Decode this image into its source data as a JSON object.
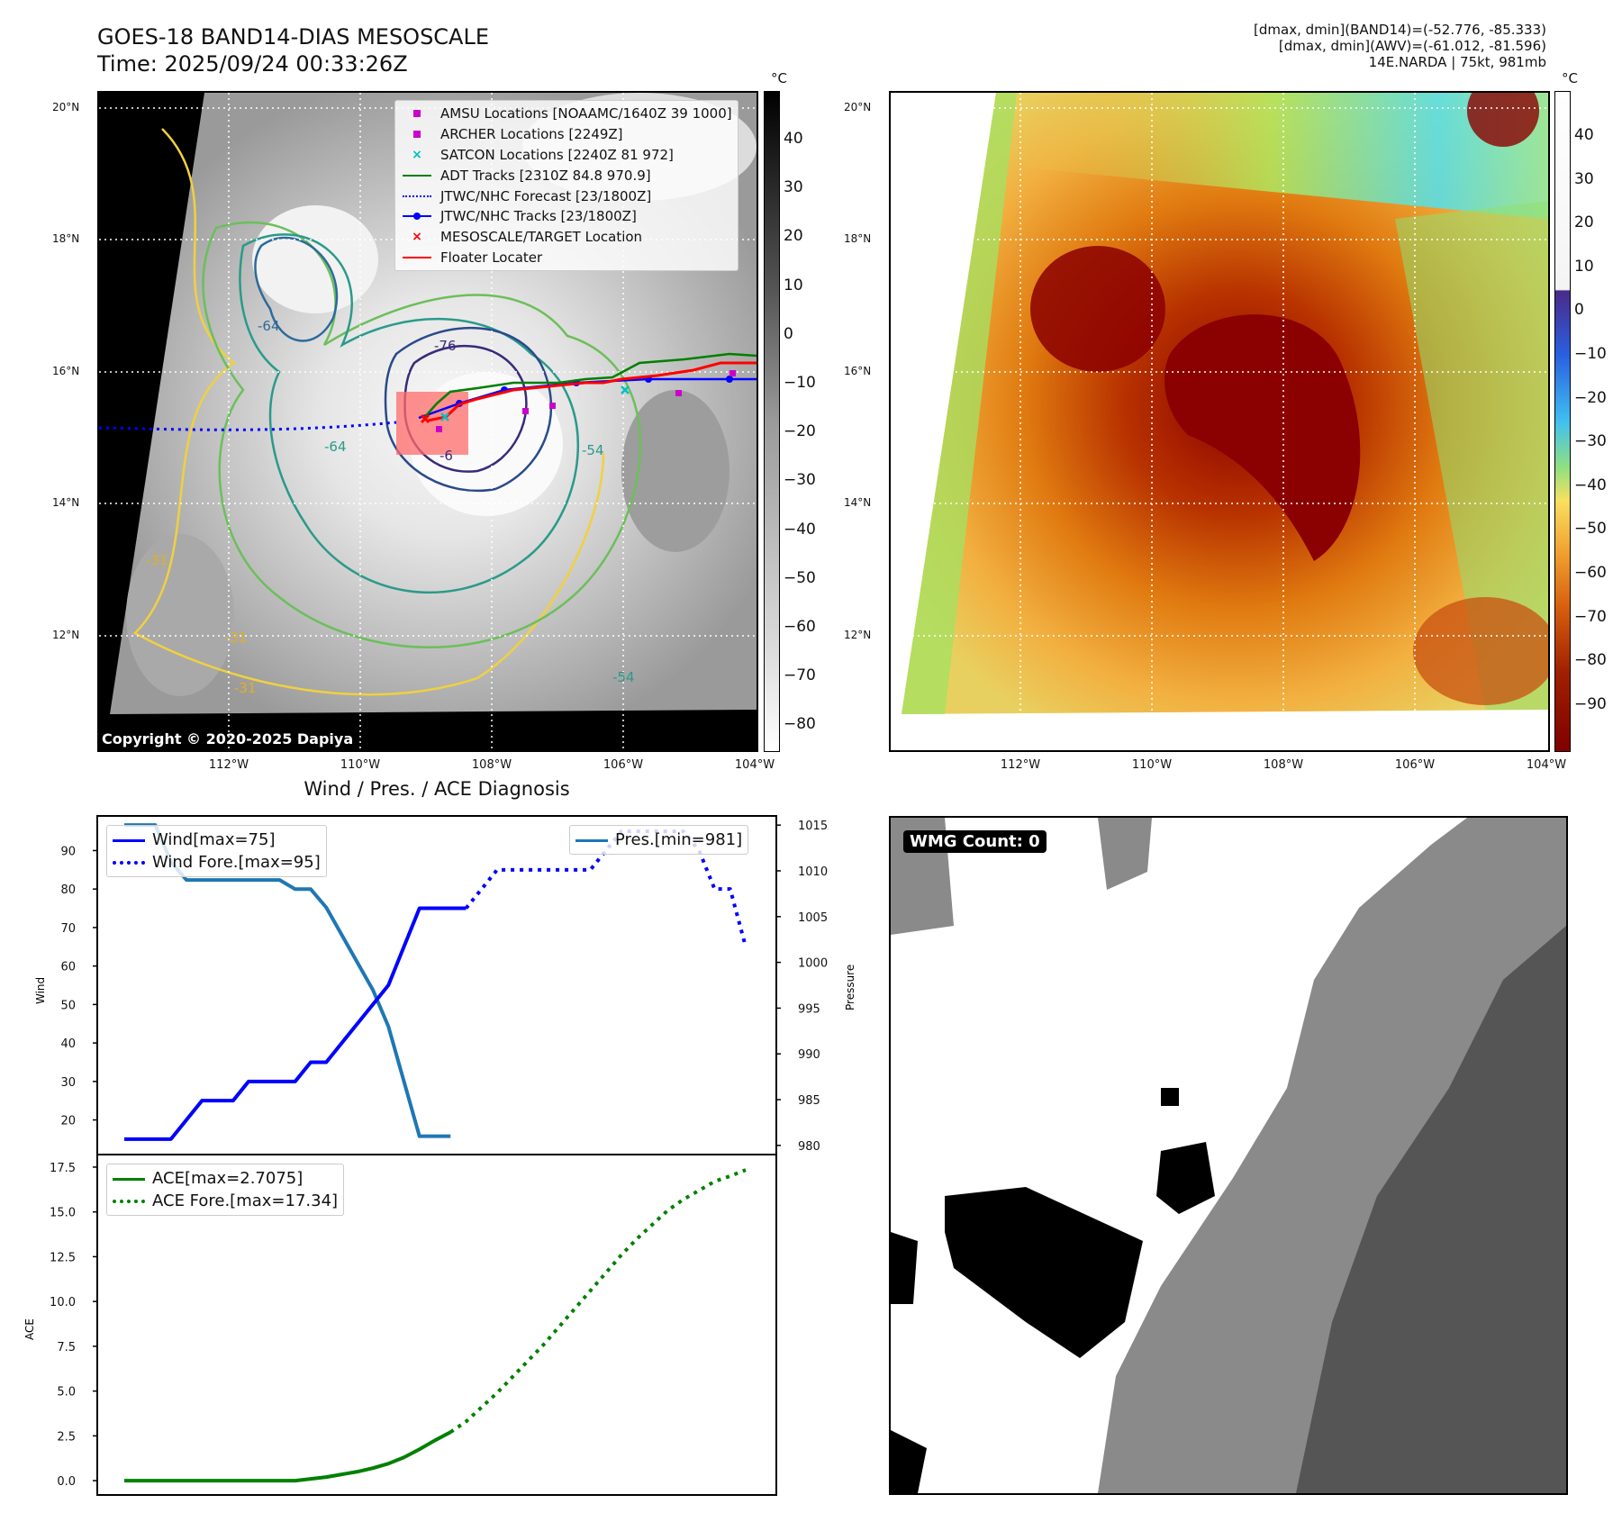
{
  "header": {
    "title_line1": "GOES-18 BAND14-DIAS MESOSCALE",
    "title_line2": "Time: 2025/09/24 00:33:26Z",
    "info_line1": "[dmax, dmin](BAND14)=(-52.776, -85.333)",
    "info_line2": "[dmax, dmin](AWV)=(-61.012, -81.596)",
    "info_line3": "14E.NARDA | 75kt, 981mb"
  },
  "map": {
    "lat_ticks": [
      "20°N",
      "18°N",
      "16°N",
      "14°N",
      "12°N"
    ],
    "lon_ticks": [
      "112°W",
      "110°W",
      "108°W",
      "106°W",
      "104°W"
    ],
    "copyright": "Copyright © 2020-2025 Dapiya",
    "contour_labels": [
      "-76",
      "-64",
      "-64",
      "-54",
      "-54",
      "-31",
      "-31",
      "-31",
      "-6"
    ],
    "legend": [
      {
        "label": "AMSU Locations [NOAAMC/1640Z 39 1000]",
        "color": "#cc00cc",
        "icon": "square-marker-icon"
      },
      {
        "label": "ARCHER Locations [2249Z]",
        "color": "#cc00cc",
        "icon": "square-marker-icon"
      },
      {
        "label": "SATCON Locations [2240Z 81 972]",
        "color": "#00bfbf",
        "icon": "x-marker-icon"
      },
      {
        "label": "ADT Tracks [2310Z 84.8 970.9]",
        "color": "#007f00",
        "icon": "line-icon"
      },
      {
        "label": "JTWC/NHC Forecast [23/1800Z]",
        "color": "#0000ff",
        "icon": "dotted-line-icon"
      },
      {
        "label": "JTWC/NHC Tracks [23/1800Z]",
        "color": "#0000ff",
        "icon": "line-dot-icon"
      },
      {
        "label": "MESOSCALE/TARGET Location",
        "color": "#ff0000",
        "icon": "x-marker-icon"
      },
      {
        "label": "Floater Locater",
        "color": "#ff0000",
        "icon": "line-icon"
      }
    ]
  },
  "colorbar_gray": {
    "unit": "°C",
    "ticks": [
      "40",
      "30",
      "20",
      "10",
      "0",
      "−10",
      "−20",
      "−30",
      "−40",
      "−50",
      "−60",
      "−70",
      "−80"
    ]
  },
  "colorbar_color": {
    "unit": "°C",
    "ticks": [
      "40",
      "30",
      "20",
      "10",
      "0",
      "−10",
      "−20",
      "−30",
      "−40",
      "−50",
      "−60",
      "−70",
      "−80",
      "−90"
    ]
  },
  "chart_data": [
    {
      "type": "line",
      "title": "Wind / Pres. / ACE Diagnosis",
      "ylabel": "Wind",
      "y2label": "Pressure",
      "ylim": [
        11,
        99
      ],
      "y2lim": [
        979,
        1016
      ],
      "yticks": [
        20,
        30,
        40,
        50,
        60,
        70,
        80,
        90
      ],
      "y2ticks": [
        980,
        985,
        990,
        995,
        1000,
        1005,
        1010,
        1015
      ],
      "x": [
        0,
        1,
        2,
        3,
        4,
        5,
        6,
        7,
        8,
        9,
        10,
        11,
        12,
        13,
        14,
        15,
        16,
        17,
        18,
        19,
        20,
        21,
        22,
        23,
        24,
        25,
        26,
        27,
        28,
        29,
        30,
        31,
        32,
        33,
        34,
        35,
        36,
        37,
        38,
        39,
        40
      ],
      "series": [
        {
          "name": "Wind[max=75]",
          "axis": "left",
          "style": "solid",
          "color": "#0000ff",
          "x": [
            0,
            1,
            2,
            3,
            4,
            5,
            6,
            7,
            8,
            9,
            10,
            11,
            12,
            13,
            14,
            15,
            16,
            17,
            18,
            19,
            20,
            21,
            22
          ],
          "values": [
            15,
            15,
            15,
            15,
            20,
            25,
            25,
            25,
            30,
            30,
            30,
            30,
            35,
            35,
            40,
            45,
            50,
            55,
            65,
            75,
            75,
            75,
            75
          ]
        },
        {
          "name": "Wind Fore.[max=95]",
          "axis": "left",
          "style": "dotted",
          "color": "#0000ff",
          "x": [
            22,
            23,
            24,
            25,
            26,
            27,
            28,
            29,
            30,
            31,
            32,
            33,
            34,
            35,
            36,
            37,
            38,
            39,
            40
          ],
          "values": [
            75,
            80,
            85,
            85,
            85,
            85,
            85,
            85,
            85,
            90,
            95,
            95,
            95,
            95,
            95,
            90,
            80,
            80,
            65
          ]
        },
        {
          "name": "Pres.[min=981]",
          "axis": "right",
          "style": "solid",
          "color": "#1f77b4",
          "x": [
            0,
            1,
            2,
            3,
            4,
            5,
            6,
            7,
            8,
            9,
            10,
            11,
            12,
            13,
            14,
            15,
            16,
            17,
            18,
            19,
            20,
            21
          ],
          "values": [
            1015,
            1015,
            1015,
            1011,
            1009,
            1009,
            1009,
            1009,
            1009,
            1009,
            1009,
            1008,
            1008,
            1006,
            1003,
            1000,
            997,
            993,
            987,
            981,
            981,
            981
          ]
        }
      ]
    },
    {
      "type": "line",
      "ylabel": "ACE",
      "ylim": [
        -0.8,
        18.2
      ],
      "yticks": [
        0.0,
        2.5,
        5.0,
        7.5,
        10.0,
        12.5,
        15.0,
        17.5
      ],
      "series": [
        {
          "name": "ACE[max=2.7075]",
          "style": "solid",
          "color": "#008000",
          "x": [
            0,
            2,
            4,
            6,
            8,
            10,
            11,
            12,
            13,
            14,
            15,
            16,
            17,
            18,
            19,
            20,
            21
          ],
          "values": [
            0,
            0,
            0,
            0,
            0,
            0,
            0,
            0.1,
            0.2,
            0.35,
            0.5,
            0.7,
            0.95,
            1.3,
            1.75,
            2.25,
            2.7075
          ]
        },
        {
          "name": "ACE Fore.[max=17.34]",
          "style": "dotted",
          "color": "#008000",
          "x": [
            21,
            22,
            23,
            24,
            25,
            26,
            27,
            28,
            29,
            30,
            31,
            32,
            33,
            34,
            35,
            36,
            37,
            38,
            39,
            40
          ],
          "values": [
            2.7075,
            3.3,
            4.1,
            4.9,
            5.8,
            6.7,
            7.6,
            8.6,
            9.6,
            10.6,
            11.6,
            12.6,
            13.5,
            14.3,
            15.1,
            15.7,
            16.2,
            16.7,
            17.0,
            17.34
          ]
        }
      ]
    }
  ],
  "wmg": {
    "label": "WMG Count: 0"
  }
}
